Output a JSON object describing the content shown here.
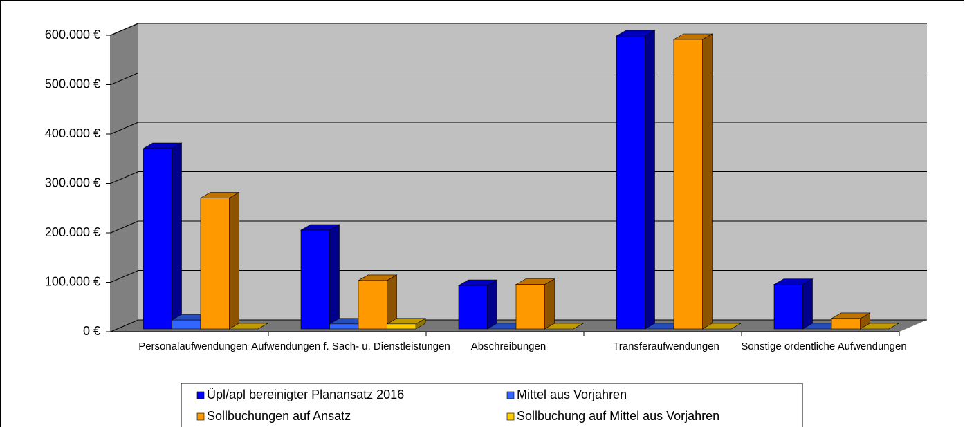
{
  "chart_data": {
    "type": "bar",
    "categories": [
      "Personalaufwendungen",
      "Aufwendungen f. Sach- u. Dienstleistungen",
      "Abschreibungen",
      "Transferaufwendungen",
      "Sonstige ordentliche Aufwendungen"
    ],
    "series": [
      {
        "name": "Üpl/apl bereinigter Planansatz 2016",
        "color": "#0000ff",
        "values": [
          365000,
          200000,
          88000,
          593000,
          90000
        ]
      },
      {
        "name": "Mittel aus Vorjahren",
        "color": "#3366ff",
        "values": [
          18000,
          10000,
          0,
          0,
          0
        ]
      },
      {
        "name": "Sollbuchungen auf Ansatz",
        "color": "#ff9900",
        "values": [
          265000,
          98000,
          90000,
          586000,
          21000
        ]
      },
      {
        "name": "Sollbuchung auf Mittel aus Vorjahren",
        "color": "#ffcc00",
        "values": [
          0,
          10000,
          0,
          0,
          0
        ]
      }
    ],
    "ylim": [
      0,
      600000
    ],
    "yticks": [
      {
        "value": 0,
        "label": "0 €"
      },
      {
        "value": 100000,
        "label": "100.000 €"
      },
      {
        "value": 200000,
        "label": "200.000 €"
      },
      {
        "value": 300000,
        "label": "300.000 €"
      },
      {
        "value": 400000,
        "label": "400.000 €"
      },
      {
        "value": 500000,
        "label": "500.000 €"
      },
      {
        "value": 600000,
        "label": "600.000 €"
      }
    ],
    "grid": true
  }
}
